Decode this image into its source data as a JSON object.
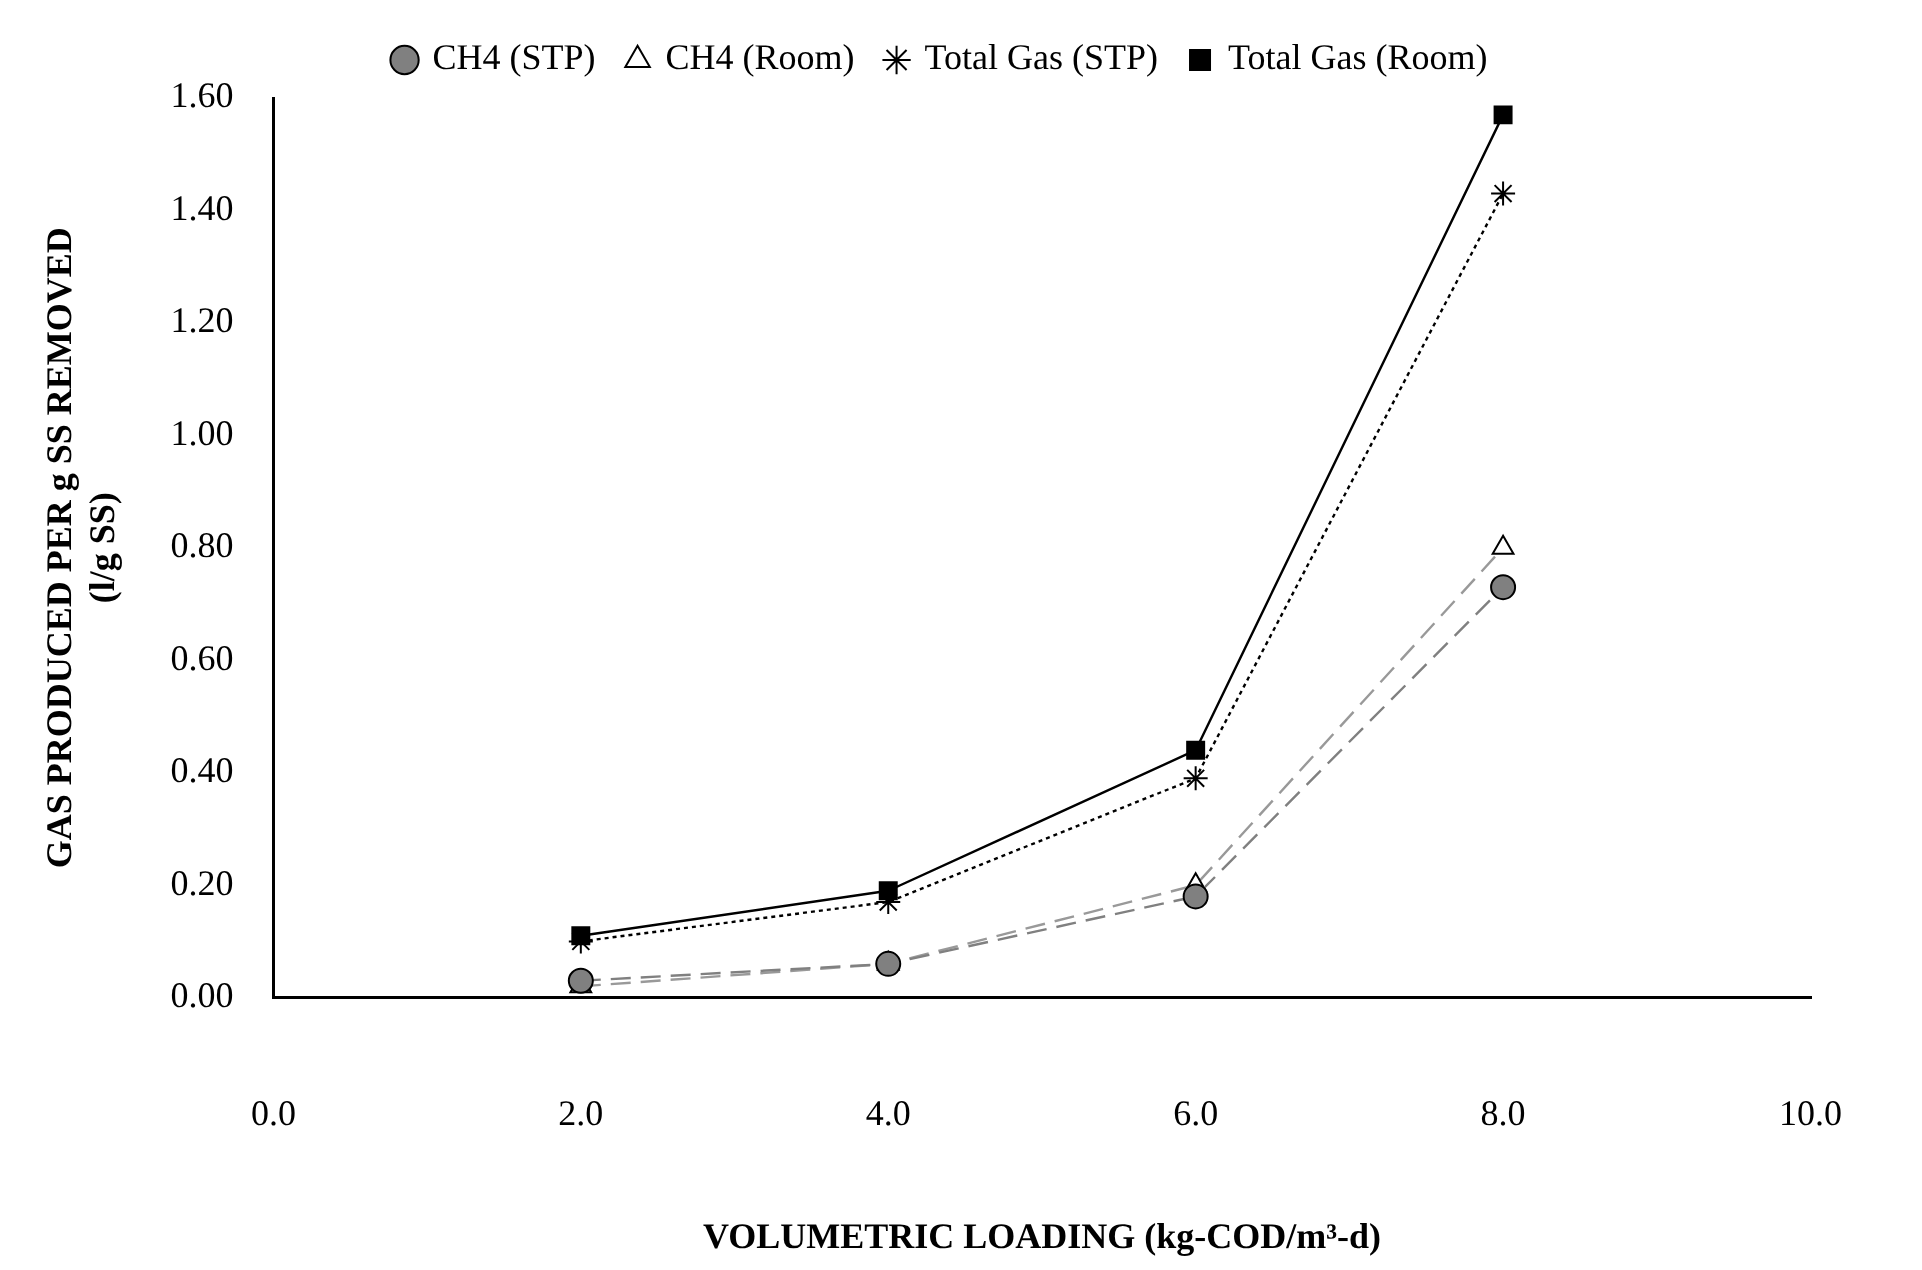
{
  "chart_data": {
    "type": "line",
    "xlabel": "VOLUMETRIC LOADING (kg-COD/m³-d)",
    "ylabel": "GAS PRODUCED PER g SS REMOVED\n(l/g SS)",
    "x": [
      2,
      4,
      6,
      8
    ],
    "series": [
      {
        "name": "Total Gas (Room)",
        "color": "#000000",
        "values": [
          0.11,
          0.19,
          0.44,
          1.57
        ],
        "marker": "square",
        "line_style": "solid"
      },
      {
        "name": "Total Gas (STP)",
        "color": "#000000",
        "values": [
          0.1,
          0.17,
          0.39,
          1.43
        ],
        "marker": "cross",
        "line_style": "dotted"
      },
      {
        "name": "CH4 (Room)",
        "color": "#999999",
        "values": [
          0.02,
          0.06,
          0.2,
          0.8
        ],
        "marker": "triangle",
        "line_style": "dashed"
      },
      {
        "name": "CH4 (STP)",
        "color": "#808080",
        "values": [
          0.03,
          0.06,
          0.18,
          0.73
        ],
        "marker": "circle",
        "line_style": "dashed"
      }
    ],
    "xlim": [
      0,
      10
    ],
    "xticks": [
      {
        "value": 0,
        "label": "0.0"
      },
      {
        "value": 2,
        "label": "2.0"
      },
      {
        "value": 4,
        "label": "4.0"
      },
      {
        "value": 6,
        "label": "6.0"
      },
      {
        "value": 8,
        "label": "8.0"
      },
      {
        "value": 10,
        "label": "10.0"
      }
    ],
    "ylim": [
      0,
      1.6
    ],
    "yticks": [
      {
        "value": 0,
        "label": "0.00"
      },
      {
        "value": 0.2,
        "label": "0.20"
      },
      {
        "value": 0.4,
        "label": "0.40"
      },
      {
        "value": 0.6,
        "label": "0.60"
      },
      {
        "value": 0.8,
        "label": "0.80"
      },
      {
        "value": 1,
        "label": "1.00"
      },
      {
        "value": 1.2,
        "label": "1.20"
      },
      {
        "value": 1.4,
        "label": "1.40"
      },
      {
        "value": 1.6,
        "label": "1.60"
      }
    ],
    "grid": false,
    "legend": "top"
  }
}
